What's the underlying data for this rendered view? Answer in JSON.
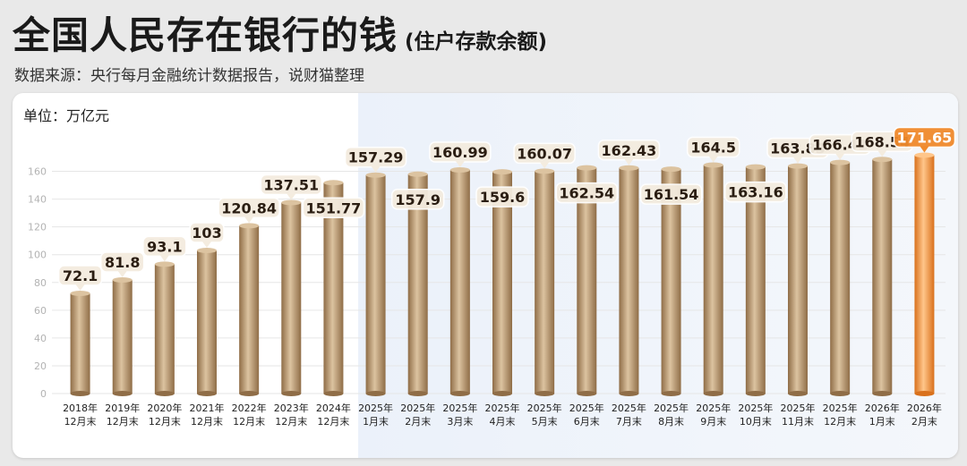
{
  "header": {
    "title": "全国人民存在银行的钱",
    "subtitle": "(住户存款余额)",
    "source": "数据来源：央行每月金融统计数据报告，说财猫整理"
  },
  "chart_data": {
    "type": "bar",
    "title": "全国人民存在银行的钱",
    "subtitle": "(住户存款余额)",
    "unit_label": "单位：万亿元",
    "ylim": [
      0,
      170
    ],
    "yticks": [
      0,
      20,
      40,
      60,
      80,
      100,
      120,
      140,
      160
    ],
    "grid": true,
    "categories": [
      [
        "2018年",
        "12月末"
      ],
      [
        "2019年",
        "12月末"
      ],
      [
        "2020年",
        "12月末"
      ],
      [
        "2021年",
        "12月末"
      ],
      [
        "2022年",
        "12月末"
      ],
      [
        "2023年",
        "12月末"
      ],
      [
        "2024年",
        "12月末"
      ],
      [
        "2025年",
        "1月末"
      ],
      [
        "2025年",
        "2月末"
      ],
      [
        "2025年",
        "3月末"
      ],
      [
        "2025年",
        "4月末"
      ],
      [
        "2025年",
        "5月末"
      ],
      [
        "2025年",
        "6月末"
      ],
      [
        "2025年",
        "7月末"
      ],
      [
        "2025年",
        "8月末"
      ],
      [
        "2025年",
        "9月末"
      ],
      [
        "2025年",
        "10月末"
      ],
      [
        "2025年",
        "11月末"
      ],
      [
        "2025年",
        "12月末"
      ],
      [
        "2026年",
        "1月末"
      ],
      [
        "2026年",
        "2月末"
      ]
    ],
    "value_labels": [
      "72.1",
      "81.8",
      "93.1",
      "103",
      "120.84",
      "137.51",
      "151.77",
      "157.29",
      "157.9",
      "160.99",
      "159.6",
      "160.07",
      "162.54",
      "162.43",
      "161.54",
      "164.5",
      "163.16",
      "163.83",
      "166.41",
      "168.54",
      "171.65"
    ],
    "values": [
      72.1,
      81.8,
      93.1,
      103,
      120.84,
      137.51,
      151.77,
      157.29,
      157.9,
      160.99,
      159.6,
      160.07,
      162.54,
      162.43,
      161.54,
      164.5,
      163.16,
      163.83,
      166.41,
      168.54,
      171.65
    ],
    "label_side": [
      "above",
      "above",
      "above",
      "above",
      "above",
      "above",
      "inside",
      "above",
      "inside",
      "above",
      "inside",
      "above",
      "inside",
      "above",
      "inside",
      "above",
      "inside",
      "above",
      "above",
      "above",
      "above"
    ],
    "highlight_index": 20,
    "colors": {
      "bar": "#b8966a",
      "bar_dark": "#8f6d47",
      "bar_light": "#dcc3a0",
      "highlight": "#f08a2c",
      "highlight_light": "#ffc68a",
      "grid": "#e6e6e6",
      "label_bg": "#f4ecdf"
    }
  }
}
